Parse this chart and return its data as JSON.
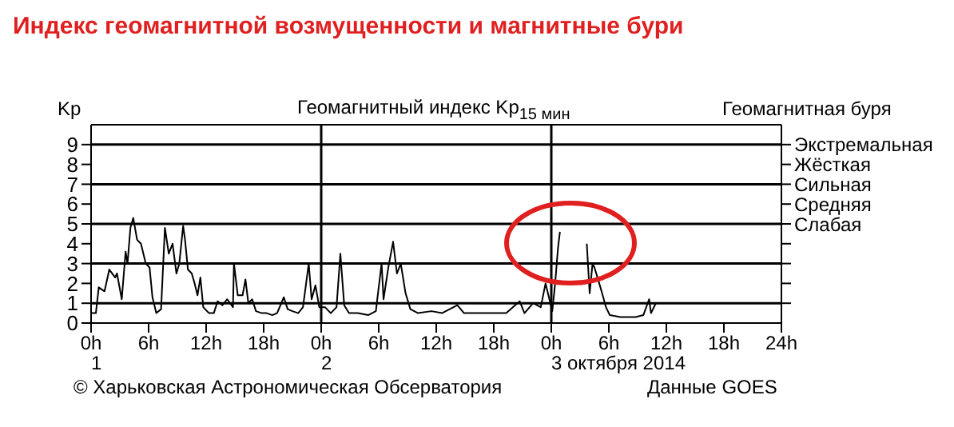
{
  "chart_data": {
    "type": "line",
    "title": "Индекс геомагнитной возмущенности и магнитные бури",
    "subtitle": "Геомагнитный индекс Kp$_{15 мин}$",
    "ylabel": "Kp",
    "y2label": "Геомагнитная буря",
    "x": [
      "2014-10-01T00:00",
      "2014-10-01T00:30",
      "2014-10-01T00:48",
      "2014-10-01T01:24",
      "2014-10-01T01:54",
      "2014-10-01T02:30",
      "2014-10-01T02:42",
      "2014-10-01T03:12",
      "2014-10-01T03:36",
      "2014-10-01T03:48",
      "2014-10-01T04:06",
      "2014-10-01T04:24",
      "2014-10-01T04:48",
      "2014-10-01T05:12",
      "2014-10-01T05:42",
      "2014-10-01T06:06",
      "2014-10-01T06:24",
      "2014-10-01T06:48",
      "2014-10-01T07:18",
      "2014-10-01T07:42",
      "2014-10-01T08:06",
      "2014-10-01T08:30",
      "2014-10-01T08:54",
      "2014-10-01T09:12",
      "2014-10-01T09:36",
      "2014-10-01T09:48",
      "2014-10-01T10:06",
      "2014-10-01T10:30",
      "2014-10-01T10:48",
      "2014-10-01T11:06",
      "2014-10-01T11:24",
      "2014-10-01T11:42",
      "2014-10-01T12:18",
      "2014-10-01T12:48",
      "2014-10-01T13:12",
      "2014-10-01T13:42",
      "2014-10-01T14:12",
      "2014-10-01T14:48",
      "2014-10-01T14:54",
      "2014-10-01T15:18",
      "2014-10-01T15:48",
      "2014-10-01T16:06",
      "2014-10-01T16:24",
      "2014-10-01T16:48",
      "2014-10-01T17:12",
      "2014-10-01T17:48",
      "2014-10-01T18:18",
      "2014-10-01T18:54",
      "2014-10-01T19:24",
      "2014-10-01T20:06",
      "2014-10-01T20:30",
      "2014-10-01T21:00",
      "2014-10-01T21:36",
      "2014-10-01T22:06",
      "2014-10-01T22:42",
      "2014-10-01T23:00",
      "2014-10-01T23:24",
      "2014-10-01T23:48",
      "2014-10-02T00:24",
      "2014-10-02T01:00",
      "2014-10-02T01:36",
      "2014-10-02T02:00",
      "2014-10-02T02:24",
      "2014-10-02T02:54",
      "2014-10-02T03:48",
      "2014-10-02T04:54",
      "2014-10-02T05:42",
      "2014-10-02T06:18",
      "2014-10-02T06:30",
      "2014-10-02T07:00",
      "2014-10-02T07:30",
      "2014-10-02T07:54",
      "2014-10-02T08:18",
      "2014-10-02T08:48",
      "2014-10-02T09:18",
      "2014-10-02T10:06",
      "2014-10-02T11:30",
      "2014-10-02T12:36",
      "2014-10-02T14:12",
      "2014-10-02T14:54",
      "2014-10-02T17:06",
      "2014-10-02T19:18",
      "2014-10-02T20:42",
      "2014-10-02T21:12",
      "2014-10-02T22:06",
      "2014-10-02T22:54",
      "2014-10-02T23:24",
      "2014-10-02T23:42",
      "2014-10-03T00:06",
      "2014-10-03T00:24",
      "2014-10-03T00:42",
      "2014-10-03T00:54",
      "2014-10-03T02:00",
      "2014-10-03T03:42",
      "2014-10-03T04:00",
      "2014-10-03T04:18",
      "2014-10-03T04:30",
      "2014-10-03T05:00",
      "2014-10-03T05:18",
      "2014-10-03T05:42",
      "2014-10-03T06:06",
      "2014-10-03T07:12",
      "2014-10-03T08:48",
      "2014-10-03T09:36",
      "2014-10-03T10:12",
      "2014-10-03T10:24",
      "2014-10-03T10:54"
    ],
    "series": [
      {
        "color": "#000000",
        "values": [
          0.5,
          0.5,
          1.8,
          1.6,
          2.7,
          2.3,
          2.5,
          1.2,
          3.6,
          3,
          4.8,
          5.3,
          4.2,
          4,
          3,
          2.8,
          1.3,
          0.5,
          0.7,
          4.8,
          3.5,
          4,
          2.5,
          3,
          4.9,
          4.2,
          2.7,
          2.5,
          2,
          1.4,
          2.3,
          0.8,
          0.5,
          0.5,
          1.1,
          0.9,
          1.2,
          0.8,
          3,
          1.4,
          1.4,
          2.2,
          1,
          1.2,
          0.6,
          0.5,
          0.5,
          0.4,
          0.5,
          1.3,
          0.7,
          0.6,
          0.5,
          0.8,
          3,
          1.2,
          1.9,
          0.8,
          0.8,
          0.5,
          0.8,
          3.5,
          0.9,
          0.5,
          0.5,
          0.4,
          0.6,
          3,
          1.2,
          2.8,
          4.1,
          2.5,
          3,
          1.5,
          0.7,
          0.5,
          0.6,
          0.5,
          0.9,
          0.5,
          0.5,
          0.5,
          1.1,
          0.5,
          1,
          0.8,
          2,
          1.4,
          0.6,
          2,
          3.8,
          4.6,
          null,
          4,
          1.5,
          3,
          2.8,
          2,
          1.5,
          0.8,
          0.4,
          0.3,
          0.3,
          0.4,
          1.2,
          0.5,
          1
        ]
      }
    ],
    "xlim": [
      "2014-10-01T00:00",
      "2014-10-04T00:00"
    ],
    "xticks": [
      {
        "value": "2014-10-01T00:00",
        "label": "0h"
      },
      {
        "value": "2014-10-01T06:00",
        "label": "6h"
      },
      {
        "value": "2014-10-01T12:00",
        "label": "12h"
      },
      {
        "value": "2014-10-01T18:00",
        "label": "18h"
      },
      {
        "value": "2014-10-02T00:00",
        "label": "0h"
      },
      {
        "value": "2014-10-02T06:00",
        "label": "6h"
      },
      {
        "value": "2014-10-02T12:00",
        "label": "12h"
      },
      {
        "value": "2014-10-02T18:00",
        "label": "18h"
      },
      {
        "value": "2014-10-03T00:00",
        "label": "0h"
      },
      {
        "value": "2014-10-03T06:00",
        "label": "6h"
      },
      {
        "value": "2014-10-03T12:00",
        "label": "12h"
      },
      {
        "value": "2014-10-03T18:00",
        "label": "18h"
      },
      {
        "value": "2014-10-04T00:00",
        "label": "24h"
      }
    ],
    "ylim": [
      0,
      10
    ],
    "yticks": [
      0,
      1,
      2,
      3,
      4,
      5,
      6,
      7,
      8,
      9
    ],
    "y2_categories": [
      "Экстремальная",
      "Жёсткая",
      "Сильная",
      "Средняя",
      "Слабая",
      null,
      null,
      null,
      null
    ],
    "ref_lines": [
      {
        "axis": "y",
        "value": 1,
        "color": "#000000"
      },
      {
        "axis": "y",
        "value": 3,
        "color": "#000000"
      },
      {
        "axis": "y",
        "value": 5,
        "color": "#000000"
      },
      {
        "axis": "y",
        "value": 7,
        "color": "#000000"
      },
      {
        "axis": "y",
        "value": 9,
        "color": "#000000"
      },
      {
        "axis": "x",
        "value": "2014-10-02T00:00",
        "color": "#000000"
      },
      {
        "axis": "x",
        "value": "2014-10-03T00:00",
        "color": "#000000"
      }
    ],
    "annotations": [
      "1",
      "2",
      "3 октября 2014",
      "© Харьковская Астрономическая Обсерватория",
      "Данные GOES"
    ]
  }
}
